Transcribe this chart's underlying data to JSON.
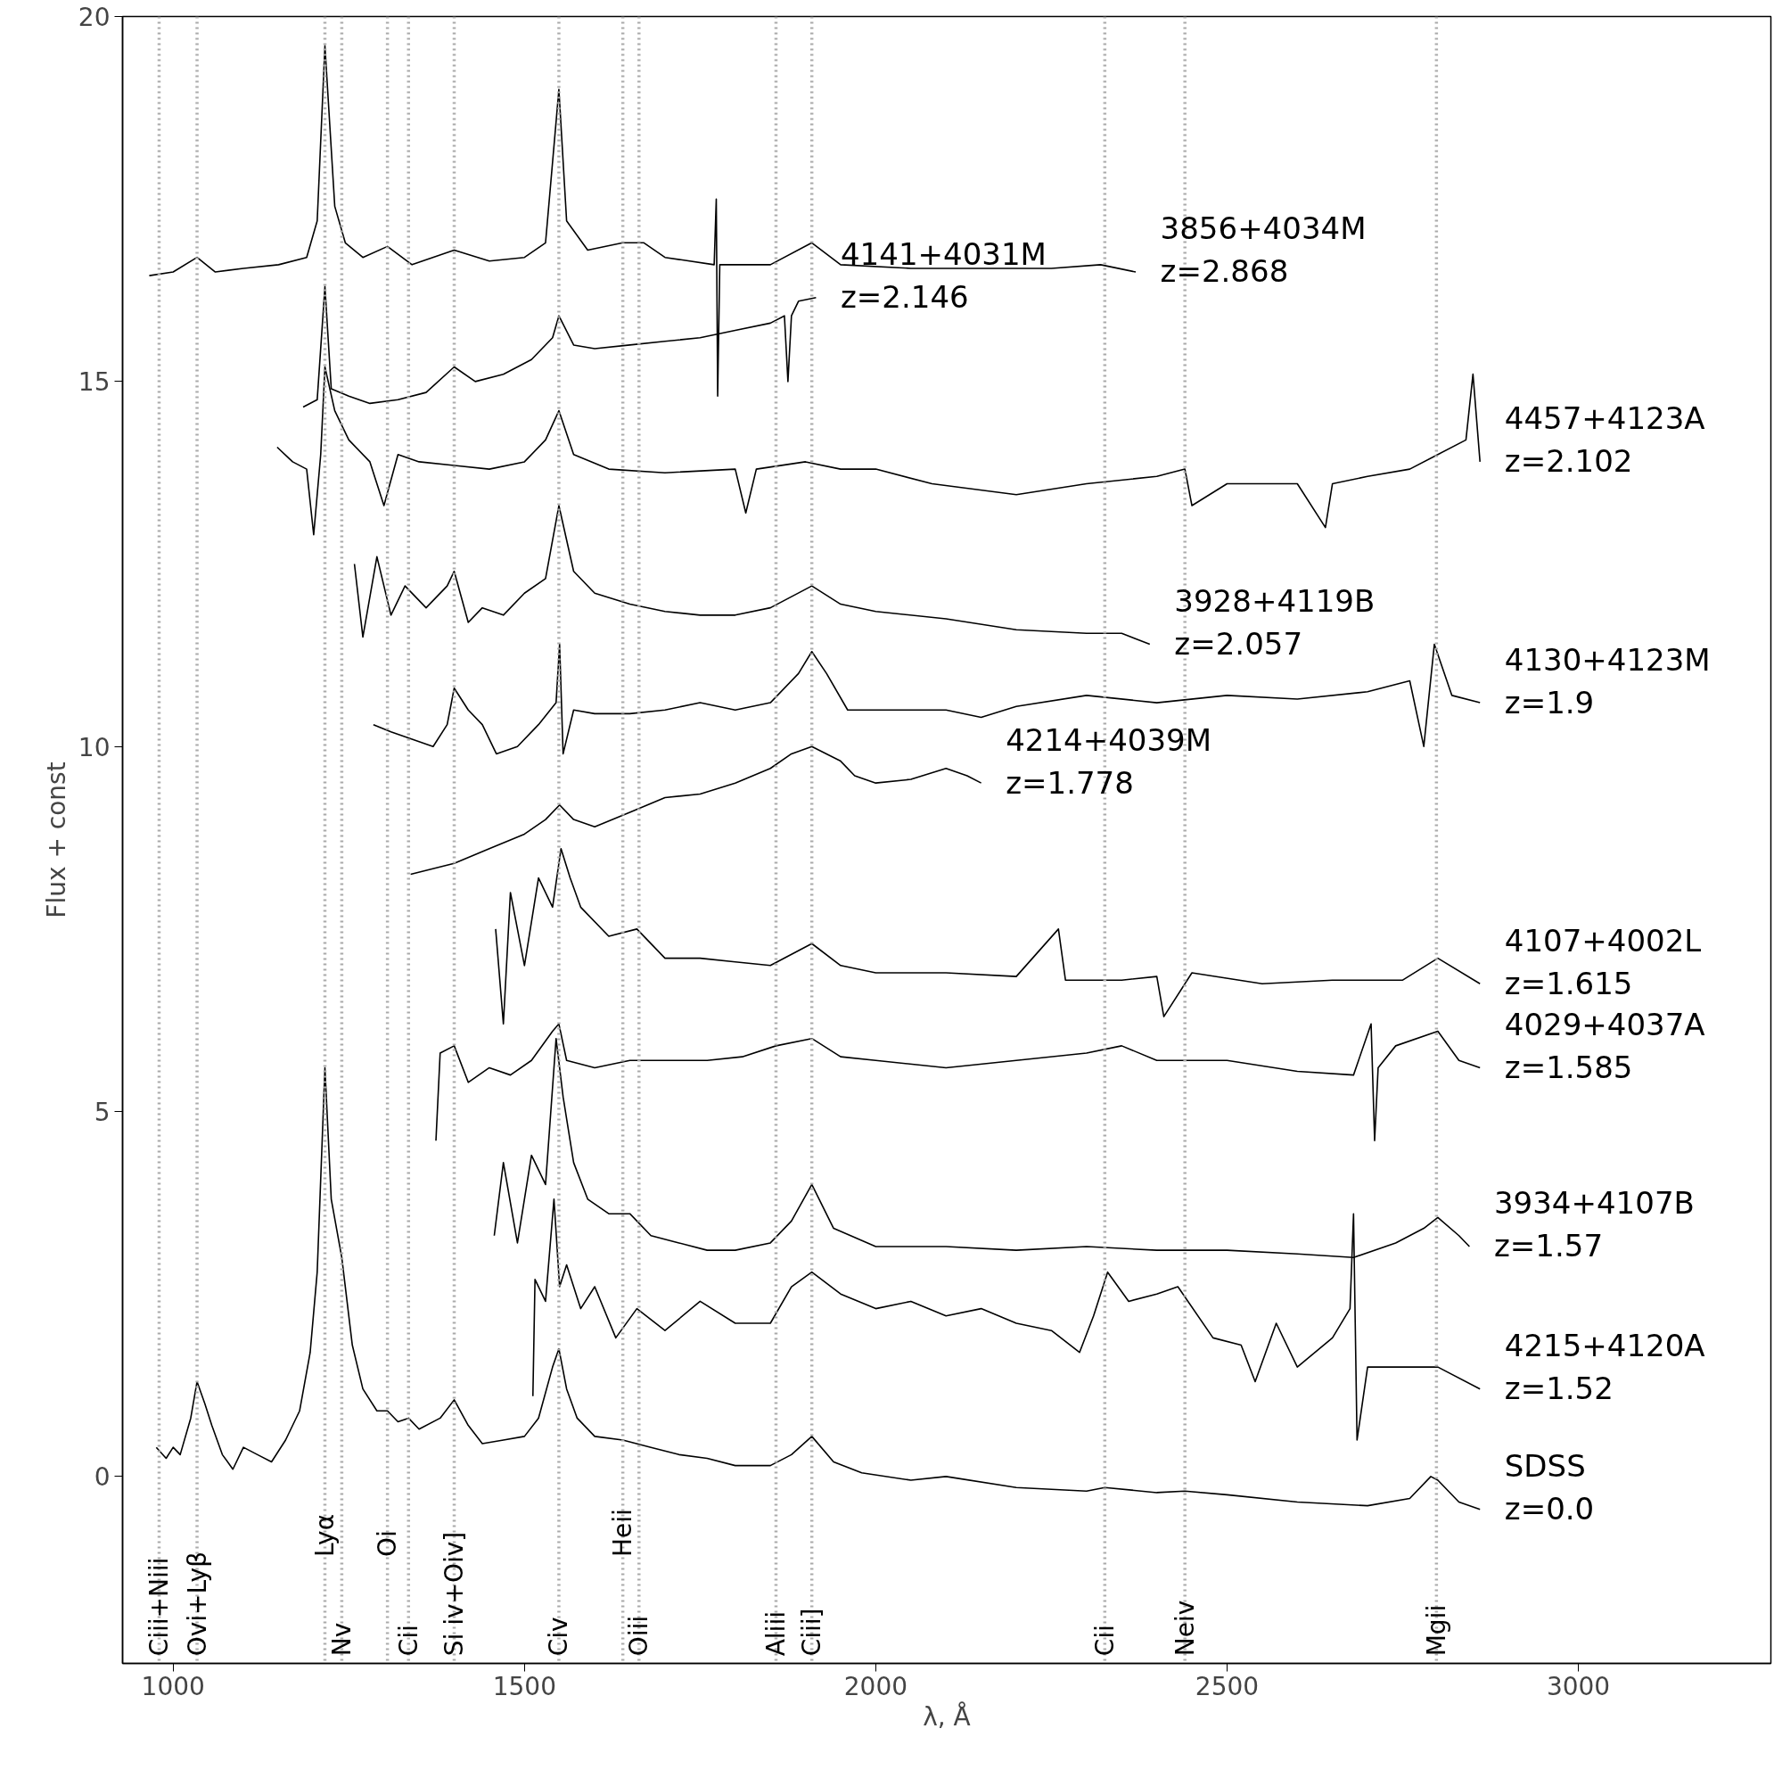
{
  "chart_data": {
    "type": "line",
    "xlabel": "λ, Å",
    "ylabel": "Flux + const",
    "xlim": [
      928,
      3274
    ],
    "ylim": [
      -2.56,
      20
    ],
    "xticks": [
      1000,
      1500,
      2000,
      2500,
      3000
    ],
    "yticks": [
      0,
      5,
      10,
      15,
      20
    ],
    "grid": false,
    "line_style": "solid",
    "series": [
      {
        "name": "3856+4034M\nz=2.868",
        "color": "#000000",
        "x": [
          966,
          1000,
          1034,
          1060,
          1100,
          1150,
          1190,
          1205,
          1216,
          1230,
          1245,
          1270,
          1305,
          1340,
          1400,
          1450,
          1500,
          1530,
          1549,
          1560,
          1590,
          1640,
          1670,
          1700,
          1770,
          1773,
          1775,
          1778,
          1850,
          1909,
          1950,
          2050,
          2150,
          2250,
          2320,
          2370
        ],
        "values": [
          16.45,
          16.5,
          16.7,
          16.5,
          16.55,
          16.6,
          16.7,
          17.2,
          19.6,
          17.4,
          16.9,
          16.7,
          16.85,
          16.6,
          16.8,
          16.65,
          16.7,
          16.9,
          19.0,
          17.2,
          16.8,
          16.9,
          16.9,
          16.7,
          16.6,
          17.5,
          14.8,
          16.6,
          16.6,
          16.9,
          16.6,
          16.55,
          16.55,
          16.55,
          16.6,
          16.5
        ]
      },
      {
        "name": "4141+4031M\nz=2.146",
        "color": "#000000",
        "x": [
          1185,
          1205,
          1216,
          1225,
          1250,
          1280,
          1320,
          1360,
          1400,
          1430,
          1470,
          1510,
          1540,
          1549,
          1570,
          1600,
          1650,
          1700,
          1750,
          1800,
          1850,
          1870,
          1875,
          1880,
          1890,
          1915
        ],
        "values": [
          14.65,
          14.75,
          16.3,
          14.9,
          14.8,
          14.7,
          14.75,
          14.85,
          15.2,
          15.0,
          15.1,
          15.3,
          15.6,
          15.9,
          15.5,
          15.45,
          15.5,
          15.55,
          15.6,
          15.7,
          15.8,
          15.9,
          15.0,
          15.9,
          16.1,
          16.15
        ]
      },
      {
        "name": "4457+4123A\nz=2.102",
        "color": "#000000",
        "x": [
          1148,
          1170,
          1190,
          1200,
          1210,
          1216,
          1230,
          1250,
          1280,
          1300,
          1320,
          1350,
          1400,
          1450,
          1500,
          1530,
          1549,
          1570,
          1620,
          1700,
          1800,
          1815,
          1830,
          1900,
          1950,
          2000,
          2080,
          2200,
          2300,
          2400,
          2440,
          2450,
          2500,
          2600,
          2640,
          2650,
          2700,
          2760,
          2800,
          2840,
          2850,
          2860
        ],
        "values": [
          14.1,
          13.9,
          13.8,
          12.9,
          14.0,
          15.2,
          14.6,
          14.2,
          13.9,
          13.3,
          14.0,
          13.9,
          13.85,
          13.8,
          13.9,
          14.2,
          14.6,
          14.0,
          13.8,
          13.75,
          13.8,
          13.2,
          13.8,
          13.9,
          13.8,
          13.8,
          13.6,
          13.45,
          13.6,
          13.7,
          13.8,
          13.3,
          13.6,
          13.6,
          13.0,
          13.6,
          13.7,
          13.8,
          14.0,
          14.2,
          15.1,
          13.9
        ]
      },
      {
        "name": "3928+4119B\nz=2.057",
        "color": "#000000",
        "x": [
          1258,
          1270,
          1290,
          1310,
          1330,
          1360,
          1390,
          1400,
          1420,
          1440,
          1470,
          1500,
          1530,
          1549,
          1570,
          1600,
          1650,
          1700,
          1750,
          1800,
          1850,
          1909,
          1950,
          2000,
          2100,
          2200,
          2300,
          2350,
          2390
        ],
        "values": [
          12.5,
          11.5,
          12.6,
          11.8,
          12.2,
          11.9,
          12.2,
          12.4,
          11.7,
          11.9,
          11.8,
          12.1,
          12.3,
          13.3,
          12.4,
          12.1,
          11.95,
          11.85,
          11.8,
          11.8,
          11.9,
          12.2,
          11.95,
          11.85,
          11.75,
          11.6,
          11.55,
          11.55,
          11.4
        ]
      },
      {
        "name": "4130+4123M\nz=1.9",
        "color": "#000000",
        "x": [
          1285,
          1310,
          1340,
          1370,
          1390,
          1400,
          1420,
          1440,
          1460,
          1490,
          1520,
          1545,
          1550,
          1555,
          1570,
          1600,
          1650,
          1700,
          1750,
          1800,
          1850,
          1890,
          1909,
          1930,
          1960,
          2010,
          2100,
          2150,
          2200,
          2300,
          2400,
          2500,
          2600,
          2700,
          2760,
          2780,
          2795,
          2820,
          2860
        ],
        "values": [
          10.3,
          10.2,
          10.1,
          10.0,
          10.3,
          10.8,
          10.5,
          10.3,
          9.9,
          10.0,
          10.3,
          10.6,
          11.4,
          9.9,
          10.5,
          10.45,
          10.45,
          10.5,
          10.6,
          10.5,
          10.6,
          11.0,
          11.3,
          11.0,
          10.5,
          10.5,
          10.5,
          10.4,
          10.55,
          10.7,
          10.6,
          10.7,
          10.65,
          10.75,
          10.9,
          10.0,
          11.4,
          10.7,
          10.6
        ]
      },
      {
        "name": "4214+4039M\nz=1.778",
        "color": "#000000",
        "x": [
          1338,
          1400,
          1450,
          1500,
          1530,
          1550,
          1570,
          1600,
          1650,
          1700,
          1750,
          1800,
          1850,
          1880,
          1909,
          1950,
          1970,
          2000,
          2050,
          2100,
          2130,
          2150
        ],
        "values": [
          8.25,
          8.4,
          8.6,
          8.8,
          9.0,
          9.2,
          9.0,
          8.9,
          9.1,
          9.3,
          9.35,
          9.5,
          9.7,
          9.9,
          10.0,
          9.8,
          9.6,
          9.5,
          9.55,
          9.7,
          9.6,
          9.5
        ]
      },
      {
        "name": "4107+4002L\nz=1.615",
        "color": "#000000",
        "x": [
          1459,
          1470,
          1480,
          1500,
          1520,
          1540,
          1552,
          1565,
          1580,
          1620,
          1660,
          1700,
          1750,
          1800,
          1850,
          1909,
          1950,
          2000,
          2100,
          2200,
          2260,
          2270,
          2350,
          2400,
          2410,
          2450,
          2550,
          2650,
          2750,
          2800,
          2860
        ],
        "values": [
          7.5,
          6.2,
          8.0,
          7.0,
          8.2,
          7.8,
          8.6,
          8.2,
          7.8,
          7.4,
          7.5,
          7.1,
          7.1,
          7.05,
          7.0,
          7.3,
          7.0,
          6.9,
          6.9,
          6.85,
          7.5,
          6.8,
          6.8,
          6.85,
          6.3,
          6.9,
          6.75,
          6.8,
          6.8,
          7.1,
          6.75
        ]
      },
      {
        "name": "4029+4037A\nz=1.585",
        "color": "#000000",
        "x": [
          1374,
          1380,
          1400,
          1420,
          1450,
          1480,
          1510,
          1540,
          1549,
          1560,
          1600,
          1650,
          1700,
          1760,
          1810,
          1858,
          1909,
          1950,
          2000,
          2100,
          2200,
          2300,
          2350,
          2400,
          2500,
          2600,
          2680,
          2705,
          2710,
          2715,
          2740,
          2800,
          2830,
          2860
        ],
        "values": [
          4.6,
          5.8,
          5.9,
          5.4,
          5.6,
          5.5,
          5.7,
          6.1,
          6.2,
          5.7,
          5.6,
          5.7,
          5.7,
          5.7,
          5.75,
          5.9,
          6.0,
          5.75,
          5.7,
          5.6,
          5.7,
          5.8,
          5.9,
          5.7,
          5.7,
          5.55,
          5.5,
          6.2,
          4.6,
          5.6,
          5.9,
          6.1,
          5.7,
          5.6
        ]
      },
      {
        "name": "3934+4107B\nz=1.57",
        "color": "#000000",
        "x": [
          1457,
          1470,
          1490,
          1510,
          1530,
          1545,
          1555,
          1570,
          1590,
          1620,
          1650,
          1680,
          1720,
          1760,
          1800,
          1850,
          1880,
          1909,
          1940,
          2000,
          2100,
          2200,
          2300,
          2400,
          2500,
          2600,
          2680,
          2740,
          2780,
          2800,
          2830,
          2845
        ],
        "values": [
          3.3,
          4.3,
          3.2,
          4.4,
          4.0,
          6.0,
          5.2,
          4.3,
          3.8,
          3.6,
          3.6,
          3.3,
          3.2,
          3.1,
          3.1,
          3.2,
          3.5,
          4.0,
          3.4,
          3.15,
          3.15,
          3.1,
          3.15,
          3.1,
          3.1,
          3.05,
          3.0,
          3.2,
          3.4,
          3.55,
          3.3,
          3.15
        ]
      },
      {
        "name": "4215+4120A\nz=1.52",
        "color": "#000000",
        "x": [
          1512,
          1515,
          1530,
          1542,
          1550,
          1560,
          1580,
          1600,
          1630,
          1660,
          1700,
          1750,
          1800,
          1850,
          1880,
          1909,
          1950,
          2000,
          2050,
          2100,
          2150,
          2200,
          2250,
          2290,
          2310,
          2330,
          2360,
          2400,
          2430,
          2480,
          2520,
          2540,
          2570,
          2600,
          2650,
          2675,
          2680,
          2685,
          2700,
          2750,
          2800,
          2860
        ],
        "values": [
          1.1,
          2.7,
          2.4,
          3.8,
          2.6,
          2.9,
          2.3,
          2.6,
          1.9,
          2.3,
          2.0,
          2.4,
          2.1,
          2.1,
          2.6,
          2.8,
          2.5,
          2.3,
          2.4,
          2.2,
          2.3,
          2.1,
          2.0,
          1.7,
          2.2,
          2.8,
          2.4,
          2.5,
          2.6,
          1.9,
          1.8,
          1.3,
          2.1,
          1.5,
          1.9,
          2.3,
          3.6,
          0.5,
          1.5,
          1.5,
          1.5,
          1.2
        ]
      },
      {
        "name": "SDSS\nz=0.0",
        "color": "#000000",
        "x": [
          976,
          990,
          1000,
          1010,
          1025,
          1034,
          1045,
          1055,
          1070,
          1085,
          1100,
          1120,
          1140,
          1160,
          1180,
          1195,
          1205,
          1216,
          1225,
          1240,
          1255,
          1270,
          1290,
          1305,
          1320,
          1335,
          1350,
          1380,
          1400,
          1420,
          1440,
          1470,
          1500,
          1520,
          1540,
          1549,
          1560,
          1575,
          1600,
          1640,
          1680,
          1720,
          1760,
          1800,
          1850,
          1880,
          1909,
          1940,
          1980,
          2050,
          2100,
          2200,
          2300,
          2326,
          2400,
          2440,
          2500,
          2600,
          2700,
          2760,
          2790,
          2800,
          2830,
          2860
        ],
        "values": [
          0.4,
          0.25,
          0.4,
          0.3,
          0.8,
          1.3,
          1.0,
          0.7,
          0.3,
          0.1,
          0.4,
          0.3,
          0.2,
          0.5,
          0.9,
          1.7,
          2.8,
          5.6,
          3.8,
          3.0,
          1.8,
          1.2,
          0.9,
          0.9,
          0.75,
          0.8,
          0.65,
          0.8,
          1.05,
          0.7,
          0.45,
          0.5,
          0.55,
          0.8,
          1.5,
          1.75,
          1.2,
          0.8,
          0.55,
          0.5,
          0.4,
          0.3,
          0.25,
          0.15,
          0.15,
          0.3,
          0.55,
          0.2,
          0.05,
          -0.05,
          0.0,
          -0.15,
          -0.2,
          -0.15,
          -0.22,
          -0.2,
          -0.25,
          -0.35,
          -0.4,
          -0.3,
          0.0,
          -0.05,
          -0.35,
          -0.45
        ]
      }
    ],
    "ref_lines": [
      {
        "axis": "x",
        "value": 980,
        "label": "Ciii+Niii",
        "color": "#aaaaaa",
        "line_style": "dotted"
      },
      {
        "axis": "x",
        "value": 1034,
        "label": "Ovi+Lyβ",
        "color": "#aaaaaa",
        "line_style": "dotted"
      },
      {
        "axis": "x",
        "value": 1216,
        "label": "Lyα",
        "color": "#aaaaaa",
        "line_style": "dotted"
      },
      {
        "axis": "x",
        "value": 1240,
        "label": "Nv",
        "color": "#aaaaaa",
        "line_style": "dotted"
      },
      {
        "axis": "x",
        "value": 1305,
        "label": "Oi",
        "color": "#aaaaaa",
        "line_style": "dotted"
      },
      {
        "axis": "x",
        "value": 1335,
        "label": "Cii",
        "color": "#aaaaaa",
        "line_style": "dotted"
      },
      {
        "axis": "x",
        "value": 1400,
        "label": "Si iv+Oiv]",
        "color": "#aaaaaa",
        "line_style": "dotted"
      },
      {
        "axis": "x",
        "value": 1549,
        "label": "Civ",
        "color": "#aaaaaa",
        "line_style": "dotted"
      },
      {
        "axis": "x",
        "value": 1640,
        "label": "Heii",
        "color": "#aaaaaa",
        "line_style": "dotted"
      },
      {
        "axis": "x",
        "value": 1663,
        "label": "Oiii",
        "color": "#aaaaaa",
        "line_style": "dotted"
      },
      {
        "axis": "x",
        "value": 1858,
        "label": "Aliii",
        "color": "#aaaaaa",
        "line_style": "dotted"
      },
      {
        "axis": "x",
        "value": 1909,
        "label": "Ciii]",
        "color": "#aaaaaa",
        "line_style": "dotted"
      },
      {
        "axis": "x",
        "value": 2326,
        "label": "Cii",
        "color": "#aaaaaa",
        "line_style": "dotted"
      },
      {
        "axis": "x",
        "value": 2440,
        "label": "Neiv",
        "color": "#aaaaaa",
        "line_style": "dotted"
      },
      {
        "axis": "x",
        "value": 2798,
        "label": "Mgii",
        "color": "#aaaaaa",
        "line_style": "dotted"
      }
    ]
  }
}
